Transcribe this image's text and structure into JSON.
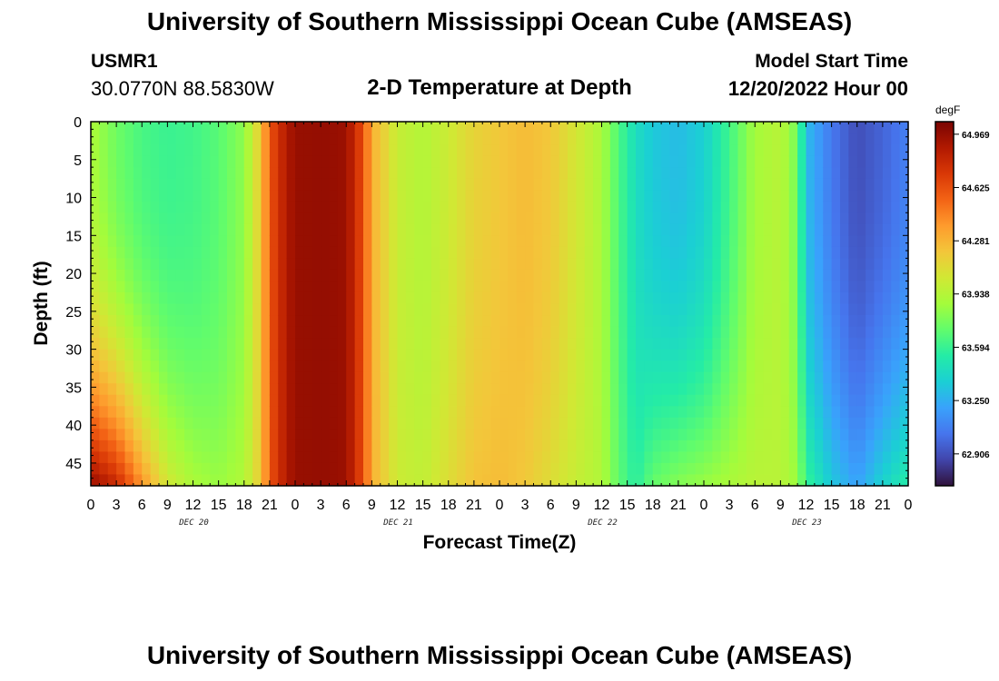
{
  "header": {
    "title": "University of Southern Mississippi Ocean Cube (AMSEAS)",
    "station": "USMR1",
    "coordinates": "30.0770N  88.5830W",
    "subtitle": "2-D Temperature at Depth",
    "model_start_label": "Model Start Time",
    "model_start_value": "12/20/2022 Hour 00"
  },
  "footer": {
    "title": "University of Southern Mississippi Ocean Cube (AMSEAS)"
  },
  "chart_data": {
    "type": "heatmap",
    "title": "2-D Temperature at Depth",
    "xlabel": "Forecast Time(Z)",
    "ylabel": "Depth (ft)",
    "x_hours_range": [
      0,
      96
    ],
    "x_tick_labels": [
      "0",
      "3",
      "6",
      "9",
      "12",
      "15",
      "18",
      "21",
      "0",
      "3",
      "6",
      "9",
      "12",
      "15",
      "18",
      "21",
      "0",
      "3",
      "6",
      "9",
      "12",
      "15",
      "18",
      "21",
      "0",
      "3",
      "6",
      "9",
      "12",
      "15",
      "18",
      "21",
      "0"
    ],
    "day_labels": [
      "DEC 20",
      "DEC 21",
      "DEC 22",
      "DEC 23"
    ],
    "ylim": [
      0,
      48
    ],
    "y_ticks": [
      0,
      5,
      10,
      15,
      20,
      25,
      30,
      35,
      40,
      45
    ],
    "colorbar": {
      "unit": "degF",
      "range": [
        62.7,
        65.05
      ],
      "tick_values": [
        64.969,
        64.625,
        64.281,
        63.938,
        63.594,
        63.25,
        62.906
      ],
      "tick_labels": [
        "64.969",
        "64.625",
        "64.281",
        "63.938",
        "63.594",
        "63.250",
        "62.906"
      ],
      "colors": [
        "#30123b",
        "#4145ab",
        "#4675ed",
        "#39a2fc",
        "#1bcfd4",
        "#24eca6",
        "#61fc6c",
        "#a4fc3b",
        "#d1e834",
        "#f3c63a",
        "#fe9b2d",
        "#f36315",
        "#d93806",
        "#b11901",
        "#7a0402"
      ]
    },
    "surface_series": {
      "name": "",
      "x_hours": [
        0,
        3,
        6,
        9,
        12,
        15,
        18,
        20,
        21,
        23,
        24,
        27,
        30,
        32,
        33,
        36,
        39,
        42,
        45,
        48,
        51,
        54,
        57,
        60,
        62,
        64,
        66,
        69,
        72,
        75,
        78,
        81,
        83,
        84,
        87,
        90,
        93,
        96
      ],
      "temps_degF": [
        63.9,
        63.74,
        63.64,
        63.6,
        63.62,
        63.68,
        63.82,
        64.2,
        64.6,
        64.88,
        64.96,
        64.97,
        64.95,
        64.62,
        64.3,
        64.0,
        63.93,
        64.02,
        64.15,
        64.2,
        64.25,
        64.2,
        64.05,
        63.9,
        63.65,
        63.45,
        63.35,
        63.3,
        63.38,
        63.62,
        63.88,
        63.95,
        63.75,
        63.3,
        63.05,
        62.9,
        62.98,
        63.08
      ]
    },
    "bottom_series": {
      "name": "",
      "x_hours": [
        0,
        3,
        6,
        9,
        12,
        15,
        18,
        20,
        21,
        23,
        24,
        27,
        30,
        32,
        33,
        36,
        39,
        42,
        45,
        48,
        51,
        54,
        57,
        60,
        62,
        64,
        66,
        69,
        72,
        75,
        78,
        81,
        83,
        84,
        87,
        90,
        93,
        96
      ],
      "temps_degF": [
        64.97,
        64.8,
        64.4,
        64.05,
        63.9,
        63.85,
        63.92,
        64.2,
        64.6,
        64.88,
        64.96,
        64.97,
        64.95,
        64.62,
        64.3,
        64.02,
        63.98,
        64.1,
        64.22,
        64.25,
        64.2,
        64.1,
        64.0,
        63.92,
        63.7,
        63.55,
        63.72,
        63.8,
        63.85,
        63.9,
        63.95,
        63.95,
        63.85,
        63.6,
        63.35,
        63.2,
        63.4,
        63.55
      ]
    }
  }
}
